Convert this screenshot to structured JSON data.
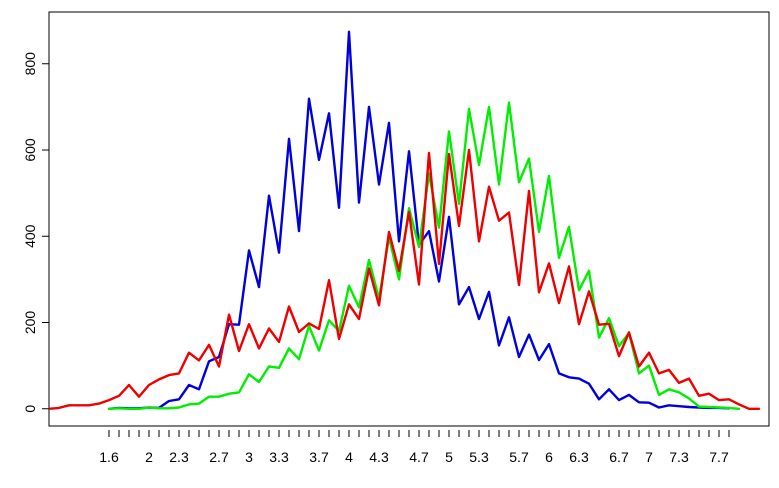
{
  "chart_data": {
    "type": "line",
    "title": "",
    "xlabel": "",
    "ylabel": "",
    "xlim": [
      1.0,
      8.2
    ],
    "ylim": [
      -40,
      920
    ],
    "y_ticks": [
      0,
      200,
      400,
      600,
      800
    ],
    "y_tick_labels": [
      "0",
      "200",
      "400",
      "600",
      "800"
    ],
    "x_minor_ticks": [
      1.6,
      1.7,
      1.8,
      1.9,
      2.0,
      2.1,
      2.2,
      2.3,
      2.4,
      2.5,
      2.6,
      2.7,
      2.8,
      2.9,
      3.0,
      3.1,
      3.2,
      3.3,
      3.4,
      3.5,
      3.6,
      3.7,
      3.8,
      3.9,
      4.0,
      4.1,
      4.2,
      4.3,
      4.4,
      4.5,
      4.6,
      4.7,
      4.8,
      4.9,
      5.0,
      5.1,
      5.2,
      5.3,
      5.4,
      5.5,
      5.6,
      5.7,
      5.8,
      5.9,
      6.0,
      6.1,
      6.2,
      6.3,
      6.4,
      6.5,
      6.6,
      6.7,
      6.8,
      6.9,
      7.0,
      7.1,
      7.2,
      7.3,
      7.4,
      7.5,
      7.6,
      7.7,
      7.8
    ],
    "x_tick_labels": [
      {
        "x": 1.6,
        "label": "1.6"
      },
      {
        "x": 2.0,
        "label": "2"
      },
      {
        "x": 2.3,
        "label": "2.3"
      },
      {
        "x": 2.7,
        "label": "2.7"
      },
      {
        "x": 3.0,
        "label": "3"
      },
      {
        "x": 3.3,
        "label": "3.3"
      },
      {
        "x": 3.7,
        "label": "3.7"
      },
      {
        "x": 4.0,
        "label": "4"
      },
      {
        "x": 4.3,
        "label": "4.3"
      },
      {
        "x": 4.7,
        "label": "4.7"
      },
      {
        "x": 5.0,
        "label": "5"
      },
      {
        "x": 5.3,
        "label": "5.3"
      },
      {
        "x": 5.7,
        "label": "5.7"
      },
      {
        "x": 6.0,
        "label": "6"
      },
      {
        "x": 6.3,
        "label": "6.3"
      },
      {
        "x": 6.7,
        "label": "6.7"
      },
      {
        "x": 7.0,
        "label": "7"
      },
      {
        "x": 7.3,
        "label": "7.3"
      },
      {
        "x": 7.7,
        "label": "7.7"
      }
    ],
    "grid": false,
    "legend": "none",
    "series": [
      {
        "color": "#0000dd",
        "x": [
          1.6,
          1.7,
          1.8,
          1.9,
          2.0,
          2.1,
          2.2,
          2.3,
          2.4,
          2.5,
          2.6,
          2.7,
          2.8,
          2.9,
          3.0,
          3.1,
          3.2,
          3.3,
          3.4,
          3.5,
          3.6,
          3.7,
          3.8,
          3.9,
          4.0,
          4.1,
          4.2,
          4.3,
          4.4,
          4.5,
          4.6,
          4.7,
          4.8,
          4.9,
          5.0,
          5.1,
          5.2,
          5.3,
          5.4,
          5.5,
          5.6,
          5.7,
          5.8,
          5.9,
          6.0,
          6.1,
          6.2,
          6.3,
          6.4,
          6.5,
          6.6,
          6.7,
          6.8,
          6.9,
          7.0,
          7.1,
          7.2,
          7.3,
          7.4,
          7.5,
          7.6,
          7.7,
          7.8
        ],
        "values": [
          0,
          2,
          1,
          1,
          3,
          2,
          18,
          22,
          55,
          45,
          110,
          120,
          196,
          195,
          367,
          282,
          494,
          362,
          626,
          412,
          719,
          577,
          685,
          466,
          874,
          478,
          700,
          520,
          663,
          388,
          597,
          380,
          412,
          295,
          445,
          242,
          282,
          208,
          271,
          147,
          212,
          120,
          172,
          113,
          150,
          82,
          73,
          70,
          58,
          22,
          45,
          20,
          32,
          15,
          14,
          3,
          8,
          6,
          4,
          3,
          2,
          2,
          1
        ]
      },
      {
        "color": "#00ee00",
        "x": [
          1.6,
          1.7,
          1.8,
          1.9,
          2.0,
          2.1,
          2.2,
          2.3,
          2.4,
          2.5,
          2.6,
          2.7,
          2.8,
          2.9,
          3.0,
          3.1,
          3.2,
          3.3,
          3.4,
          3.5,
          3.6,
          3.7,
          3.8,
          3.9,
          4.0,
          4.1,
          4.2,
          4.3,
          4.4,
          4.5,
          4.6,
          4.7,
          4.8,
          4.9,
          5.0,
          5.1,
          5.2,
          5.3,
          5.4,
          5.5,
          5.6,
          5.7,
          5.8,
          5.9,
          6.0,
          6.1,
          6.2,
          6.3,
          6.4,
          6.5,
          6.6,
          6.7,
          6.8,
          6.9,
          7.0,
          7.1,
          7.2,
          7.3,
          7.4,
          7.5,
          7.6,
          7.7,
          7.8,
          7.9
        ],
        "values": [
          0,
          1,
          0,
          0,
          3,
          1,
          1,
          3,
          10,
          12,
          28,
          28,
          35,
          38,
          80,
          62,
          98,
          95,
          140,
          115,
          192,
          135,
          205,
          180,
          285,
          235,
          345,
          255,
          398,
          300,
          465,
          375,
          545,
          420,
          643,
          475,
          695,
          565,
          700,
          520,
          710,
          525,
          580,
          410,
          540,
          350,
          422,
          275,
          320,
          165,
          210,
          145,
          176,
          82,
          100,
          32,
          45,
          38,
          24,
          5,
          4,
          3,
          2,
          0
        ]
      },
      {
        "color": "#ee0000",
        "x": [
          1.0,
          1.1,
          1.2,
          1.3,
          1.4,
          1.5,
          1.6,
          1.7,
          1.8,
          1.9,
          2.0,
          2.1,
          2.2,
          2.3,
          2.4,
          2.5,
          2.6,
          2.7,
          2.8,
          2.9,
          3.0,
          3.1,
          3.2,
          3.3,
          3.4,
          3.5,
          3.6,
          3.7,
          3.8,
          3.9,
          4.0,
          4.1,
          4.2,
          4.3,
          4.4,
          4.5,
          4.6,
          4.7,
          4.8,
          4.9,
          5.0,
          5.1,
          5.2,
          5.3,
          5.4,
          5.5,
          5.6,
          5.7,
          5.8,
          5.9,
          6.0,
          6.1,
          6.2,
          6.3,
          6.4,
          6.5,
          6.6,
          6.7,
          6.8,
          6.9,
          7.0,
          7.1,
          7.2,
          7.3,
          7.4,
          7.5,
          7.6,
          7.7,
          7.8,
          7.9,
          8.0,
          8.1
        ],
        "values": [
          0,
          2,
          8,
          8,
          8,
          12,
          20,
          30,
          55,
          28,
          55,
          68,
          78,
          82,
          130,
          112,
          148,
          98,
          218,
          134,
          196,
          140,
          186,
          155,
          237,
          178,
          198,
          185,
          298,
          162,
          242,
          208,
          325,
          240,
          410,
          320,
          456,
          288,
          593,
          336,
          591,
          424,
          600,
          388,
          515,
          436,
          455,
          287,
          505,
          270,
          337,
          245,
          330,
          196,
          272,
          195,
          197,
          122,
          177,
          98,
          130,
          82,
          90,
          60,
          70,
          30,
          35,
          20,
          22,
          10,
          0,
          0
        ]
      }
    ]
  }
}
